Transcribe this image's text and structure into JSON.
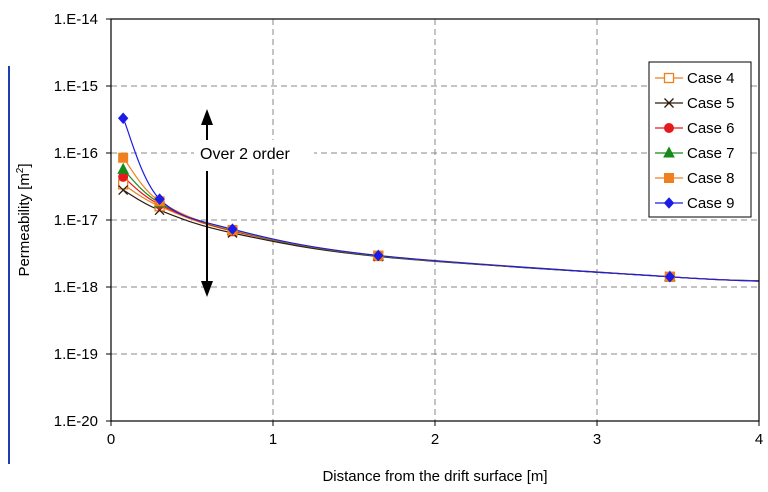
{
  "chart_data": {
    "type": "line",
    "xlabel": "Distance from the drift surface [m]",
    "ylabel_base": "Permeability [m",
    "ylabel_exp": "2",
    "ylabel_tail": "]",
    "xlim": [
      0,
      4
    ],
    "ylim": [
      1e-20,
      1e-14
    ],
    "y_scale": "log",
    "grid": true,
    "legend_position": "right",
    "x_ticks": [
      "0",
      "1",
      "2",
      "3",
      "4"
    ],
    "y_ticks": [
      "1.E-20",
      "1.E-19",
      "1.E-18",
      "1.E-17",
      "1.E-16",
      "1.E-15",
      "1.E-14"
    ],
    "annotation": "Over 2 order",
    "marker_x": [
      0.075,
      0.3,
      0.75,
      1.65,
      3.45
    ],
    "series": [
      {
        "name": "Case 4",
        "color": "#f07f1d",
        "marker": "open-square",
        "values": [
          3.4e-17,
          1.6e-17,
          6.8e-18,
          2.9e-18,
          1.42e-18
        ]
      },
      {
        "name": "Case 5",
        "color": "#2b1b0f",
        "marker": "x",
        "values": [
          2.8e-17,
          1.4e-17,
          6.4e-18,
          2.85e-18,
          1.42e-18
        ]
      },
      {
        "name": "Case 6",
        "color": "#e6191d",
        "marker": "circle",
        "values": [
          4.4e-17,
          1.7e-17,
          6.9e-18,
          2.9e-18,
          1.42e-18
        ]
      },
      {
        "name": "Case 7",
        "color": "#168a1b",
        "marker": "triangle",
        "values": [
          5.7e-17,
          1.8e-17,
          7e-18,
          2.9e-18,
          1.42e-18
        ]
      },
      {
        "name": "Case 8",
        "color": "#f07f1d",
        "marker": "square",
        "values": [
          8.5e-17,
          1.9e-17,
          7.1e-18,
          2.95e-18,
          1.42e-18
        ]
      },
      {
        "name": "Case 9",
        "color": "#1c1ce8",
        "marker": "diamond",
        "values": [
          3.3e-16,
          2.05e-17,
          7.3e-18,
          2.95e-18,
          1.42e-18
        ]
      }
    ]
  }
}
